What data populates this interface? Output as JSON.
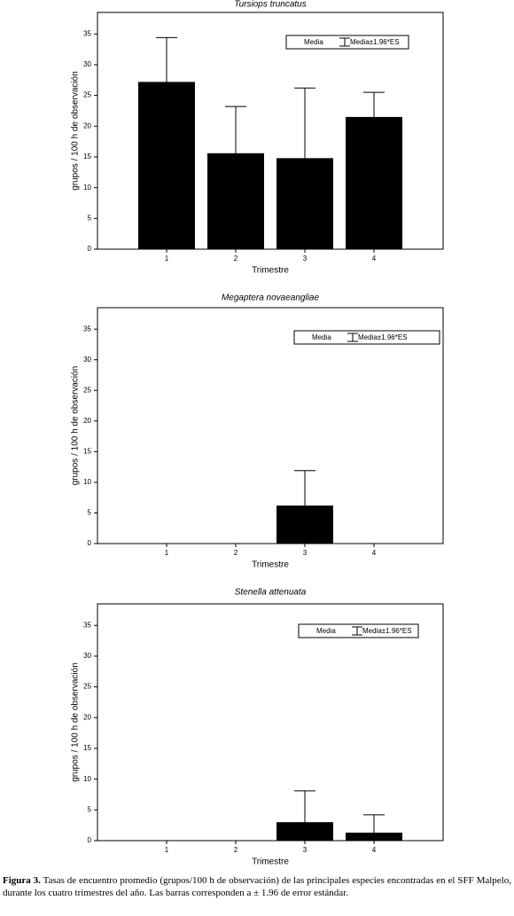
{
  "chart_data": [
    {
      "type": "bar",
      "title": "Tursiops truncatus",
      "xlabel": "Trimestre",
      "ylabel": "grupos / 100 h  de observación",
      "x": [
        1,
        2,
        3,
        4
      ],
      "xlim": [
        0,
        5
      ],
      "xticks": [
        1,
        2,
        3,
        4
      ],
      "ylim": [
        0,
        38.5
      ],
      "yticks": [
        0,
        5,
        10,
        15,
        20,
        25,
        30,
        35
      ],
      "series": [
        {
          "name": "Media",
          "error_name": "Media±1.96*ES",
          "color": "#000000",
          "values": [
            27.2,
            15.6,
            14.8,
            21.5
          ],
          "errors": [
            7.2,
            7.6,
            11.4,
            4.0
          ]
        }
      ]
    },
    {
      "type": "bar",
      "title": "Megaptera novaeangliae",
      "xlabel": "Trimestre",
      "ylabel": "grupos / 100 h  de observación",
      "x": [
        1,
        2,
        3,
        4
      ],
      "xlim": [
        0,
        5
      ],
      "xticks": [
        1,
        2,
        3,
        4
      ],
      "ylim": [
        0,
        38.5
      ],
      "yticks": [
        0,
        5,
        10,
        15,
        20,
        25,
        30,
        35
      ],
      "series": [
        {
          "name": "Media",
          "error_name": "Media±1.96*ES",
          "color": "#000000",
          "values": [
            0,
            0,
            6.2,
            0
          ],
          "errors": [
            0,
            0,
            5.7,
            0
          ]
        }
      ]
    },
    {
      "type": "bar",
      "title": "Stenella attenuata",
      "xlabel": "Trimestre",
      "ylabel": "grupos / 100 h  de observación",
      "x": [
        1,
        2,
        3,
        4
      ],
      "xlim": [
        0,
        5
      ],
      "xticks": [
        1,
        2,
        3,
        4
      ],
      "ylim": [
        0,
        38.5
      ],
      "yticks": [
        0,
        5,
        10,
        15,
        20,
        25,
        30,
        35
      ],
      "series": [
        {
          "name": "Media",
          "error_name": "Media±1.96*ES",
          "color": "#000000",
          "values": [
            0,
            0,
            3.0,
            1.3
          ],
          "errors": [
            0,
            0,
            5.1,
            2.9
          ]
        }
      ]
    }
  ],
  "caption": {
    "label": "Figura 3.",
    "text": "Tasas de encuentro promedio (grupos/100 h de observación) de las principales especies encontradas en el SFF Malpelo, durante los cuatro trimestres del año. Las barras corresponden a ± 1.96 de error estándar."
  }
}
